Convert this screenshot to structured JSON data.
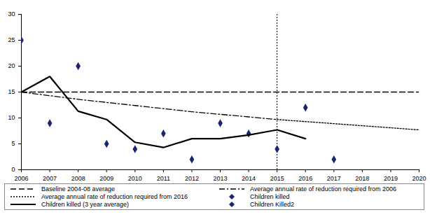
{
  "chart_data": {
    "type": "line",
    "x": [
      2006,
      2007,
      2008,
      2009,
      2010,
      2011,
      2012,
      2013,
      2014,
      2015,
      2016,
      2017,
      2018,
      2019,
      2020
    ],
    "xlim": [
      2006,
      2020
    ],
    "xticks": [
      2006,
      2007,
      2008,
      2009,
      2010,
      2011,
      2012,
      2013,
      2014,
      2015,
      2016,
      2017,
      2018,
      2019,
      2020
    ],
    "ylim": [
      0,
      30
    ],
    "yticks": [
      0,
      5,
      10,
      15,
      20,
      25,
      30
    ],
    "grid": false,
    "legend": "bottom",
    "vlines": [
      2015
    ],
    "series": [
      {
        "name": "Baseline 2004-08 average",
        "type": "line",
        "line_style": "dashed",
        "color": "#000000",
        "values": [
          15,
          15,
          15,
          15,
          15,
          15,
          15,
          15,
          15,
          15,
          15,
          15,
          15,
          15,
          15
        ]
      },
      {
        "name": "Average annual rate of reduction required from 2006",
        "type": "line",
        "line_style": "dashdot",
        "color": "#000000",
        "values": [
          15,
          14.3,
          13.6,
          13.0,
          12.4,
          11.8,
          11.2,
          10.7,
          10.2,
          9.7,
          null,
          null,
          null,
          null,
          null
        ]
      },
      {
        "name": "Average annual rate of reduction required from 2016",
        "type": "line",
        "line_style": "dotted",
        "color": "#000000",
        "values": [
          null,
          null,
          null,
          null,
          null,
          null,
          null,
          null,
          null,
          9.7,
          9.3,
          8.9,
          8.5,
          8.1,
          7.7
        ]
      },
      {
        "name": "Children killed",
        "type": "scatter",
        "marker": "diamond",
        "color": "#1a2470",
        "values": [
          25,
          9,
          20,
          5,
          4,
          7,
          2,
          9,
          7,
          4,
          12,
          null,
          null,
          null,
          null
        ]
      },
      {
        "name": "Children killed (3 year average)",
        "type": "line",
        "line_style": "solid",
        "color": "#000000",
        "values": [
          15,
          18,
          11.3,
          9.7,
          5.3,
          4.3,
          6,
          6,
          6.7,
          7.7,
          6,
          null,
          null,
          null,
          null
        ]
      },
      {
        "name": "Children Killed2",
        "type": "scatter",
        "marker": "diamond",
        "color": "#1a2470",
        "values": [
          null,
          null,
          null,
          null,
          null,
          null,
          null,
          null,
          null,
          null,
          null,
          2,
          null,
          null,
          null
        ]
      }
    ]
  }
}
